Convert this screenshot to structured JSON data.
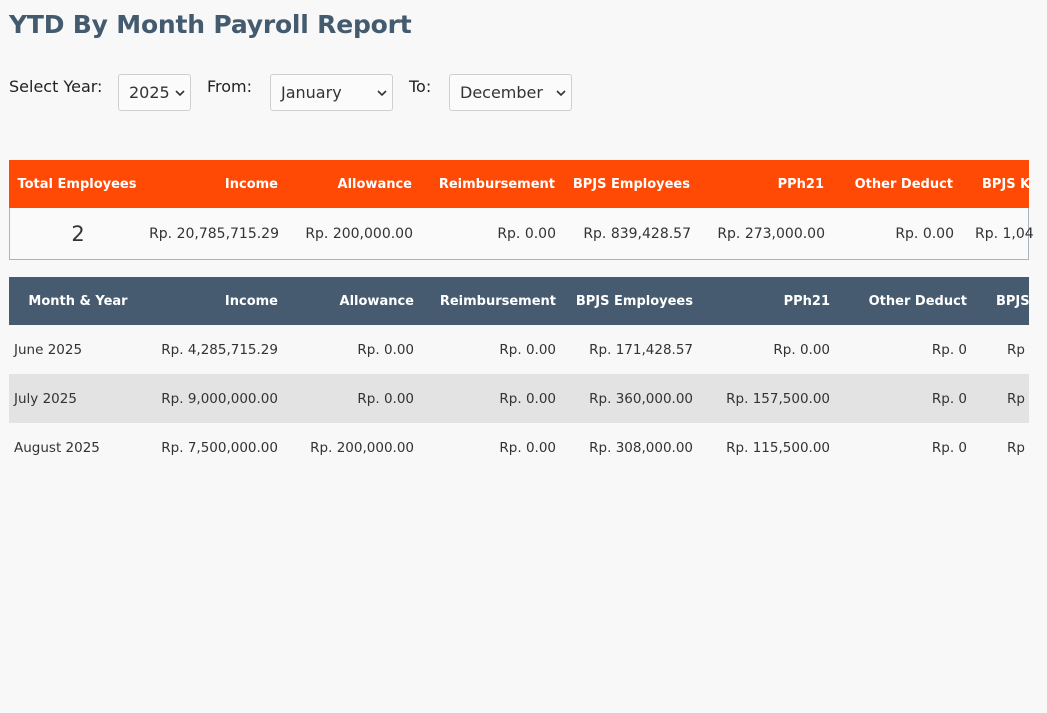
{
  "page": {
    "title": "YTD By Month Payroll Report"
  },
  "filters": {
    "year_label": "Select Year:",
    "year_value": "2025",
    "from_label": "From:",
    "from_value": "January",
    "to_label": "To:",
    "to_value": "December"
  },
  "summary": {
    "headers": [
      "Total Employees",
      "Income",
      "Allowance",
      "Reimbursement",
      "BPJS Employees",
      "PPh21",
      "Other Deduct",
      "BPJS K"
    ],
    "values": [
      "2",
      "Rp. 20,785,715.29",
      "Rp. 200,000.00",
      "Rp. 0.00",
      "Rp. 839,428.57",
      "Rp. 273,000.00",
      "Rp. 0.00",
      "Rp. 1,04"
    ]
  },
  "monthly": {
    "headers": [
      "Month & Year",
      "Income",
      "Allowance",
      "Reimbursement",
      "BPJS Employees",
      "PPh21",
      "Other Deduct",
      "BPJS"
    ],
    "rows": [
      [
        "June 2025",
        "Rp. 4,285,715.29",
        "Rp. 0.00",
        "Rp. 0.00",
        "Rp. 171,428.57",
        "Rp. 0.00",
        "Rp. 0",
        "Rp"
      ],
      [
        "July 2025",
        "Rp. 9,000,000.00",
        "Rp. 0.00",
        "Rp. 0.00",
        "Rp. 360,000.00",
        "Rp. 157,500.00",
        "Rp. 0",
        "Rp"
      ],
      [
        "August 2025",
        "Rp. 7,500,000.00",
        "Rp. 200,000.00",
        "Rp. 0.00",
        "Rp. 308,000.00",
        "Rp. 115,500.00",
        "Rp. 0",
        "Rp"
      ]
    ]
  }
}
